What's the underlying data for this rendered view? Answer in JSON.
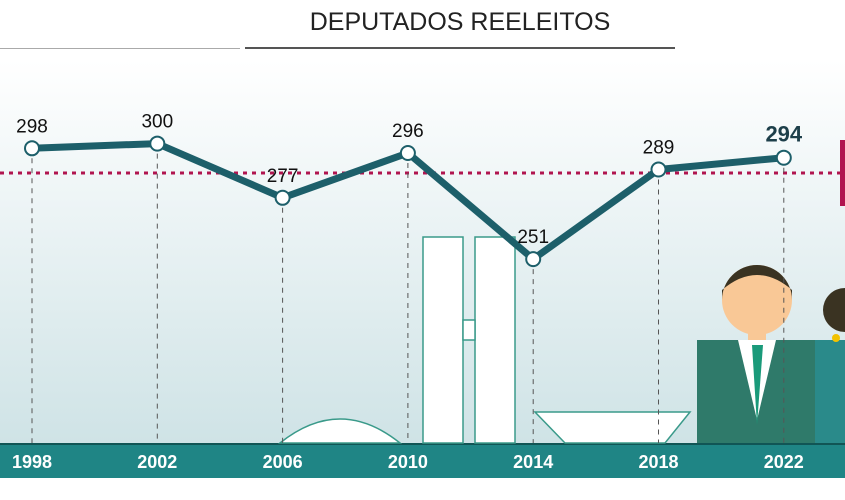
{
  "title": "DEPUTADOS REELEITOS",
  "chart_data": {
    "type": "line",
    "title": "DEPUTADOS REELEITOS",
    "categories": [
      "1998",
      "2002",
      "2006",
      "2010",
      "2014",
      "2018",
      "2022"
    ],
    "values": [
      298,
      300,
      277,
      296,
      251,
      289,
      294
    ],
    "xlabel": "",
    "ylabel": "",
    "ylim": [
      240,
      310
    ],
    "grid": false,
    "colors": {
      "line": "#1d5f6a",
      "reference": "#b0144f",
      "axis_bar": "#1f8585"
    }
  }
}
